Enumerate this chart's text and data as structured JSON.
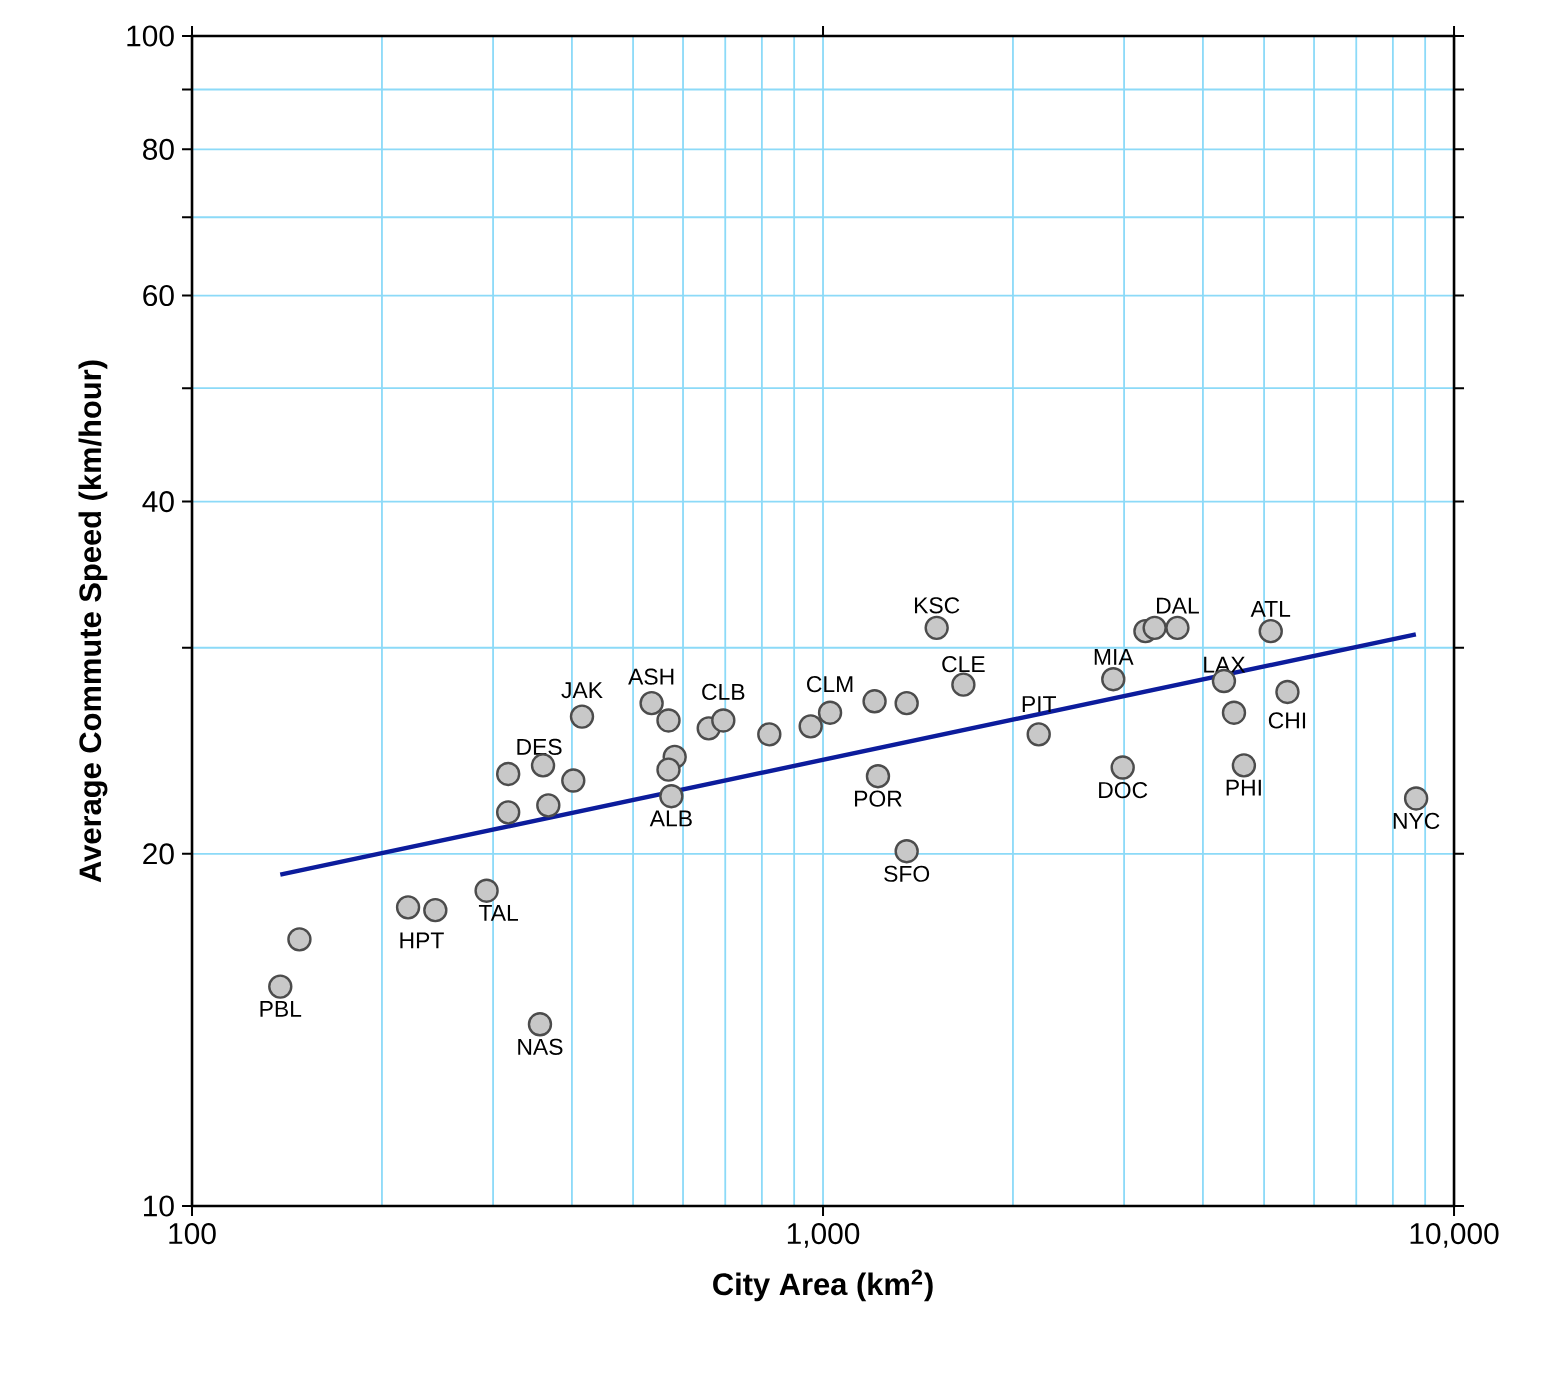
{
  "chart_data": {
    "type": "scatter",
    "xlabel": "City Area (km$^{2}$)",
    "ylabel": "Average Commute Speed (km/hour)",
    "log": "xy",
    "grid": true,
    "xlim": [
      100,
      10000
    ],
    "ylim": [
      10,
      100
    ],
    "xticks": [
      {
        "value": 100,
        "label": "100"
      },
      {
        "value": 200,
        "label": null
      },
      {
        "value": 300,
        "label": null
      },
      {
        "value": 400,
        "label": null
      },
      {
        "value": 500,
        "label": null
      },
      {
        "value": 600,
        "label": null
      },
      {
        "value": 700,
        "label": null
      },
      {
        "value": 800,
        "label": null
      },
      {
        "value": 900,
        "label": null
      },
      {
        "value": 1000,
        "label": "1,000"
      },
      {
        "value": 2000,
        "label": null
      },
      {
        "value": 3000,
        "label": null
      },
      {
        "value": 4000,
        "label": null
      },
      {
        "value": 5000,
        "label": null
      },
      {
        "value": 6000,
        "label": null
      },
      {
        "value": 7000,
        "label": null
      },
      {
        "value": 8000,
        "label": null
      },
      {
        "value": 9000,
        "label": null
      },
      {
        "value": 10000,
        "label": "10,000"
      }
    ],
    "yticks": [
      10,
      20,
      {
        "value": 30,
        "label": null
      },
      40,
      {
        "value": 50,
        "label": null
      },
      60,
      {
        "value": 70,
        "label": null
      },
      80,
      {
        "value": 90,
        "label": null
      },
      100
    ],
    "series": [
      {
        "type": "scatter",
        "color": "#c8c8c8",
        "marker": "circle",
        "x": [
          138,
          148,
          220,
          243,
          293,
          356,
          317,
          317,
          360,
          367,
          402,
          415,
          535,
          569,
          582,
          569,
          575,
          659,
          695,
          822,
          956,
          1026,
          1207,
          1357,
          1514,
          1669,
          1222,
          1357,
          2197,
          2884,
          2985,
          3243,
          3354,
          3645,
          4319,
          4480,
          4645,
          5123,
          5445,
          8708
        ],
        "values": [
          15.4,
          16.9,
          18.0,
          17.9,
          18.6,
          14.3,
          23.4,
          21.7,
          23.8,
          22.0,
          23.1,
          26.2,
          26.9,
          26.0,
          24.2,
          23.6,
          22.4,
          25.6,
          26.0,
          25.3,
          25.7,
          26.4,
          27.0,
          26.9,
          31.2,
          27.9,
          23.3,
          20.1,
          25.3,
          28.2,
          23.7,
          31.0,
          31.2,
          31.2,
          28.1,
          26.4,
          23.8,
          31.0,
          27.5,
          22.3
        ]
      },
      {
        "type": "line",
        "color": "#0c1c9c",
        "marker": "none",
        "x": [
          138,
          8700
        ],
        "values": [
          19.2,
          30.8
        ]
      }
    ],
    "annotations": [
      {
        "text": "PBL",
        "x": 138,
        "y": 15.4
      },
      {
        "text": "HPT",
        "x": 231,
        "y": 17.9
      },
      {
        "text": "TAL",
        "x": 293,
        "y": 18.6
      },
      {
        "text": "NAS",
        "x": 356,
        "y": 14.3
      },
      {
        "text": "DES",
        "x": 360,
        "y": 23.8
      },
      {
        "text": "JAK",
        "x": 415,
        "y": 26.2
      },
      {
        "text": "ASH",
        "x": 535,
        "y": 26.9
      },
      {
        "text": "ALB",
        "x": 575,
        "y": 22.4
      },
      {
        "text": "CLB",
        "x": 695,
        "y": 26.0
      },
      {
        "text": "CLM",
        "x": 1026,
        "y": 26.4
      },
      {
        "text": "KSC",
        "x": 1514,
        "y": 31.2
      },
      {
        "text": "CLE",
        "x": 1669,
        "y": 27.9
      },
      {
        "text": "POR",
        "x": 1222,
        "y": 23.3
      },
      {
        "text": "SFO",
        "x": 1357,
        "y": 20.1
      },
      {
        "text": "PIT",
        "x": 2197,
        "y": 25.3
      },
      {
        "text": "MIA",
        "x": 2884,
        "y": 28.2
      },
      {
        "text": "DOC",
        "x": 2985,
        "y": 23.7
      },
      {
        "text": "DAL",
        "x": 3645,
        "y": 31.2
      },
      {
        "text": "LAX",
        "x": 4319,
        "y": 28.1
      },
      {
        "text": "ATL",
        "x": 5123,
        "y": 31.0
      },
      {
        "text": "PHI",
        "x": 4645,
        "y": 23.8
      },
      {
        "text": "CHI",
        "x": 5445,
        "y": 27.5
      },
      {
        "text": "NYC",
        "x": 8708,
        "y": 22.3
      }
    ]
  }
}
